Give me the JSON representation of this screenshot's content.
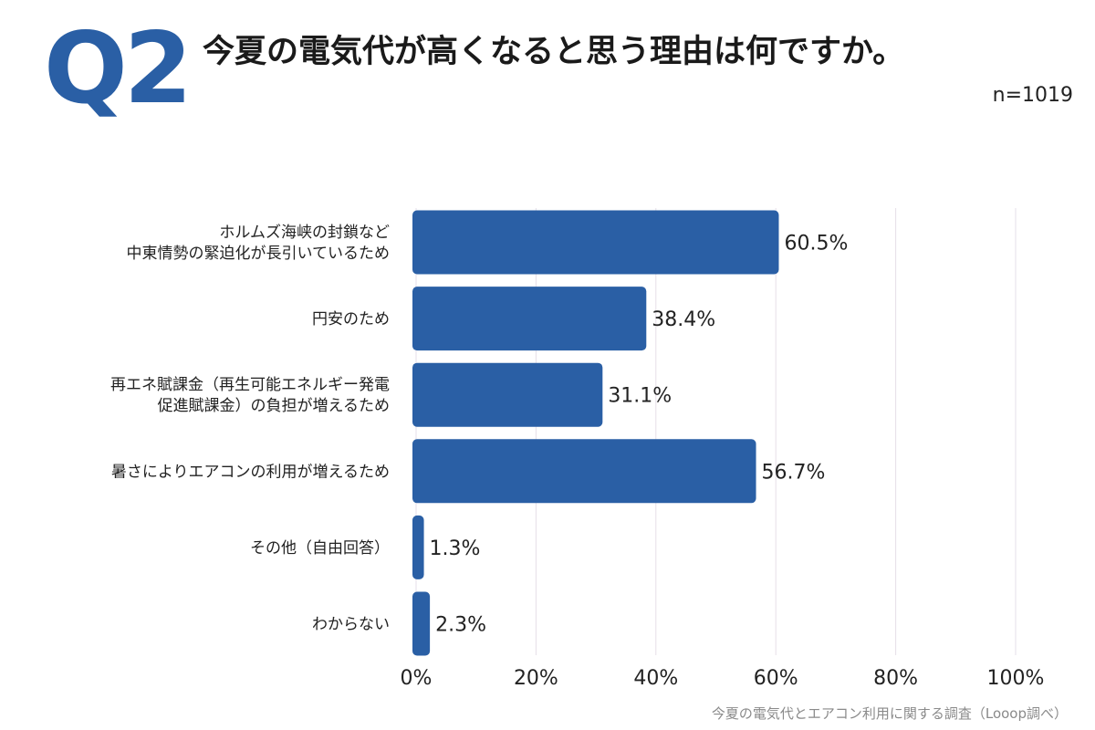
{
  "header": {
    "badge": "Q2",
    "title": "今夏の電気代が高くなると思う理由は何ですか。",
    "sample_size": "n=1019"
  },
  "footer": {
    "source": "今夏の電気代とエアコン利用に関する調査（Looop調べ）"
  },
  "colors": {
    "bar": "#2a5fa5",
    "badge": "#2a5fa5",
    "grid": "#e6dfe8"
  },
  "chart_data": {
    "type": "bar",
    "orientation": "horizontal",
    "categories": [
      [
        "ホルムズ海峡の封鎖など",
        "中東情勢の緊迫化が長引いているため"
      ],
      [
        "円安のため"
      ],
      [
        "再エネ賦課金（再生可能エネルギー発電",
        "促進賦課金）の負担が増えるため"
      ],
      [
        "暑さによりエアコンの利用が増えるため"
      ],
      [
        "その他（自由回答）"
      ],
      [
        "わからない"
      ]
    ],
    "values": [
      60.5,
      38.4,
      31.1,
      56.7,
      1.3,
      2.3
    ],
    "value_labels": [
      "60.5%",
      "38.4%",
      "31.1%",
      "56.7%",
      "1.3%",
      "2.3%"
    ],
    "xlim": [
      0,
      100
    ],
    "ticks": [
      0,
      20,
      40,
      60,
      80,
      100
    ],
    "tick_labels": [
      "0%",
      "20%",
      "40%",
      "60%",
      "80%",
      "100%"
    ],
    "grid": true,
    "legend": "none"
  }
}
